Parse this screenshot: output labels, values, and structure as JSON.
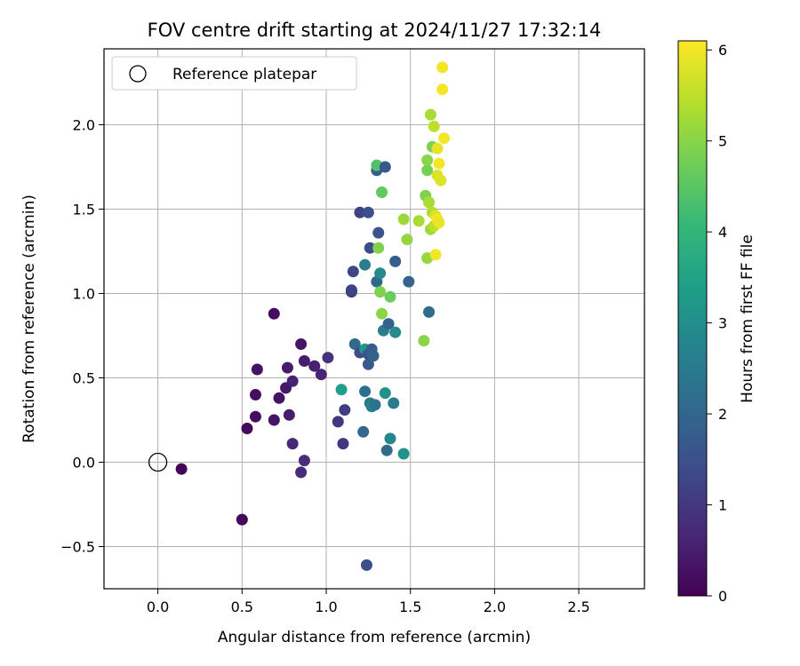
{
  "chart_data": {
    "type": "scatter",
    "title": "FOV centre drift starting at 2024/11/27 17:32:14",
    "xlabel": "Angular distance from reference (arcmin)",
    "ylabel": "Rotation from reference (arcmin)",
    "xlim": [
      -0.32,
      2.89
    ],
    "ylim": [
      -0.75,
      2.45
    ],
    "xticks": [
      "0.0",
      "0.5",
      "1.0",
      "1.5",
      "2.0",
      "2.5"
    ],
    "yticks": [
      "−0.5",
      "0.0",
      "0.5",
      "1.0",
      "1.5",
      "2.0"
    ],
    "grid": true,
    "legend": {
      "position": "top-left",
      "label": "Reference platepar"
    },
    "reference_point": {
      "x": 0.0,
      "y": 0.0
    },
    "colorbar": {
      "label": "Hours from first FF file",
      "range": [
        0,
        6.1
      ],
      "ticks": [
        "0",
        "1",
        "2",
        "3",
        "4",
        "5",
        "6"
      ],
      "colormap": "viridis"
    },
    "points": [
      {
        "x": 0.14,
        "y": -0.04,
        "h": 0.05
      },
      {
        "x": 0.5,
        "y": -0.34,
        "h": 0.1
      },
      {
        "x": 0.53,
        "y": 0.2,
        "h": 0.15
      },
      {
        "x": 0.58,
        "y": 0.27,
        "h": 0.2
      },
      {
        "x": 0.58,
        "y": 0.4,
        "h": 0.25
      },
      {
        "x": 0.59,
        "y": 0.55,
        "h": 0.3
      },
      {
        "x": 0.69,
        "y": 0.88,
        "h": 0.2
      },
      {
        "x": 0.69,
        "y": 0.25,
        "h": 0.35
      },
      {
        "x": 0.72,
        "y": 0.38,
        "h": 0.3
      },
      {
        "x": 0.76,
        "y": 0.44,
        "h": 0.4
      },
      {
        "x": 0.77,
        "y": 0.56,
        "h": 0.45
      },
      {
        "x": 0.78,
        "y": 0.28,
        "h": 0.5
      },
      {
        "x": 0.8,
        "y": 0.48,
        "h": 0.55
      },
      {
        "x": 0.8,
        "y": 0.11,
        "h": 0.7
      },
      {
        "x": 0.85,
        "y": -0.06,
        "h": 0.75
      },
      {
        "x": 0.85,
        "y": 0.7,
        "h": 0.35
      },
      {
        "x": 0.87,
        "y": 0.6,
        "h": 0.5
      },
      {
        "x": 0.87,
        "y": 0.01,
        "h": 0.8
      },
      {
        "x": 0.93,
        "y": 0.57,
        "h": 0.55
      },
      {
        "x": 0.97,
        "y": 0.52,
        "h": 0.65
      },
      {
        "x": 1.01,
        "y": 0.62,
        "h": 0.9
      },
      {
        "x": 1.07,
        "y": 0.24,
        "h": 1.0
      },
      {
        "x": 1.1,
        "y": 0.11,
        "h": 1.0
      },
      {
        "x": 1.11,
        "y": 0.31,
        "h": 1.1
      },
      {
        "x": 1.09,
        "y": 0.43,
        "h": 3.4
      },
      {
        "x": 1.15,
        "y": 1.01,
        "h": 1.1
      },
      {
        "x": 1.15,
        "y": 1.02,
        "h": 1.2
      },
      {
        "x": 1.16,
        "y": 1.13,
        "h": 1.3
      },
      {
        "x": 1.17,
        "y": 0.7,
        "h": 2.1
      },
      {
        "x": 1.2,
        "y": 0.65,
        "h": 1.4
      },
      {
        "x": 1.2,
        "y": 1.48,
        "h": 1.2
      },
      {
        "x": 1.22,
        "y": 0.18,
        "h": 2.0
      },
      {
        "x": 1.23,
        "y": 0.42,
        "h": 2.2
      },
      {
        "x": 1.23,
        "y": 1.17,
        "h": 2.6
      },
      {
        "x": 1.23,
        "y": 0.67,
        "h": 3.2
      },
      {
        "x": 1.25,
        "y": 0.64,
        "h": 1.6
      },
      {
        "x": 1.25,
        "y": 0.58,
        "h": 1.7
      },
      {
        "x": 1.25,
        "y": 1.48,
        "h": 1.5
      },
      {
        "x": 1.24,
        "y": -0.61,
        "h": 1.5
      },
      {
        "x": 1.26,
        "y": 1.27,
        "h": 1.4
      },
      {
        "x": 1.26,
        "y": 0.35,
        "h": 2.4
      },
      {
        "x": 1.27,
        "y": 0.33,
        "h": 2.7
      },
      {
        "x": 1.27,
        "y": 0.67,
        "h": 1.8
      },
      {
        "x": 1.28,
        "y": 0.63,
        "h": 1.9
      },
      {
        "x": 1.29,
        "y": 0.34,
        "h": 2.3
      },
      {
        "x": 1.3,
        "y": 1.73,
        "h": 1.8
      },
      {
        "x": 1.3,
        "y": 1.07,
        "h": 2.0
      },
      {
        "x": 1.3,
        "y": 1.76,
        "h": 4.4
      },
      {
        "x": 1.31,
        "y": 1.36,
        "h": 1.6
      },
      {
        "x": 1.31,
        "y": 1.27,
        "h": 4.9
      },
      {
        "x": 1.32,
        "y": 1.12,
        "h": 2.9
      },
      {
        "x": 1.32,
        "y": 1.01,
        "h": 4.9
      },
      {
        "x": 1.33,
        "y": 1.6,
        "h": 4.6
      },
      {
        "x": 1.33,
        "y": 0.88,
        "h": 5.0
      },
      {
        "x": 1.34,
        "y": 0.78,
        "h": 2.6
      },
      {
        "x": 1.35,
        "y": 1.75,
        "h": 1.7
      },
      {
        "x": 1.35,
        "y": 0.41,
        "h": 3.1
      },
      {
        "x": 1.36,
        "y": 0.07,
        "h": 2.1
      },
      {
        "x": 1.37,
        "y": 0.82,
        "h": 1.9
      },
      {
        "x": 1.38,
        "y": 0.98,
        "h": 4.7
      },
      {
        "x": 1.38,
        "y": 0.14,
        "h": 2.8
      },
      {
        "x": 1.4,
        "y": 0.35,
        "h": 2.5
      },
      {
        "x": 1.41,
        "y": 1.19,
        "h": 1.8
      },
      {
        "x": 1.41,
        "y": 0.77,
        "h": 2.9
      },
      {
        "x": 1.46,
        "y": 0.05,
        "h": 3.1
      },
      {
        "x": 1.46,
        "y": 1.44,
        "h": 5.2
      },
      {
        "x": 1.48,
        "y": 1.32,
        "h": 5.1
      },
      {
        "x": 1.49,
        "y": 1.07,
        "h": 1.9
      },
      {
        "x": 1.55,
        "y": 1.43,
        "h": 5.3
      },
      {
        "x": 1.58,
        "y": 0.72,
        "h": 5.0
      },
      {
        "x": 1.59,
        "y": 1.58,
        "h": 4.9
      },
      {
        "x": 1.6,
        "y": 1.21,
        "h": 5.1
      },
      {
        "x": 1.6,
        "y": 1.73,
        "h": 4.8
      },
      {
        "x": 1.6,
        "y": 1.79,
        "h": 5.0
      },
      {
        "x": 1.61,
        "y": 1.54,
        "h": 5.3
      },
      {
        "x": 1.61,
        "y": 0.89,
        "h": 2.1
      },
      {
        "x": 1.62,
        "y": 2.06,
        "h": 5.3
      },
      {
        "x": 1.62,
        "y": 1.38,
        "h": 5.2
      },
      {
        "x": 1.63,
        "y": 1.87,
        "h": 4.9
      },
      {
        "x": 1.63,
        "y": 1.48,
        "h": 5.4
      },
      {
        "x": 1.64,
        "y": 1.99,
        "h": 5.5
      },
      {
        "x": 1.64,
        "y": 1.4,
        "h": 5.5
      },
      {
        "x": 1.65,
        "y": 1.46,
        "h": 5.8
      },
      {
        "x": 1.65,
        "y": 1.23,
        "h": 6.0
      },
      {
        "x": 1.66,
        "y": 1.86,
        "h": 5.9
      },
      {
        "x": 1.66,
        "y": 1.44,
        "h": 6.0
      },
      {
        "x": 1.66,
        "y": 1.7,
        "h": 5.8
      },
      {
        "x": 1.67,
        "y": 1.77,
        "h": 6.0
      },
      {
        "x": 1.67,
        "y": 1.42,
        "h": 5.9
      },
      {
        "x": 1.68,
        "y": 1.67,
        "h": 5.8
      },
      {
        "x": 1.69,
        "y": 2.21,
        "h": 6.0
      },
      {
        "x": 1.69,
        "y": 2.34,
        "h": 6.0
      },
      {
        "x": 1.7,
        "y": 1.92,
        "h": 6.0
      }
    ]
  }
}
